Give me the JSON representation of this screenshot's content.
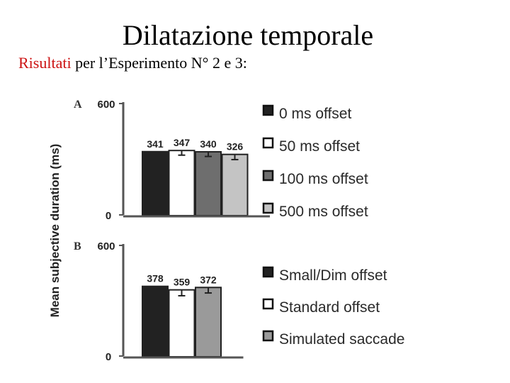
{
  "slide": {
    "title": "Dilatazione temporale",
    "subtitle_highlight": "Risultati",
    "subtitle_rest": " per l’Esperimento N° 2 e 3:"
  },
  "y_axis_label": "Mean subjective duration (ms)",
  "chart_data": [
    {
      "type": "bar",
      "panel": "A",
      "categories": [
        "0 ms offset",
        "50 ms offset",
        "100 ms offset",
        "500 ms offset"
      ],
      "values": [
        341,
        347,
        340,
        326
      ],
      "errors": [
        30,
        25,
        25,
        28
      ],
      "colors": [
        "#222222",
        "#ffffff",
        "#6e6e6e",
        "#c4c4c4"
      ],
      "ylim": [
        0,
        600
      ],
      "yticks": [
        "600",
        "0"
      ],
      "legend": [
        "0 ms offset",
        "50 ms offset",
        "100 ms offset",
        "500 ms offset"
      ],
      "legend_position": "right"
    },
    {
      "type": "bar",
      "panel": "B",
      "categories": [
        "Small/Dim offset",
        "Standard offset",
        "Simulated saccade"
      ],
      "values": [
        378,
        359,
        372
      ],
      "errors": [
        30,
        32,
        30
      ],
      "colors": [
        "#222222",
        "#ffffff",
        "#9a9a9a"
      ],
      "ylim": [
        0,
        600
      ],
      "yticks": [
        "600",
        "0"
      ],
      "legend": [
        "Small/Dim offset",
        "Standard offset",
        "Simulated saccade"
      ],
      "legend_position": "right"
    }
  ]
}
